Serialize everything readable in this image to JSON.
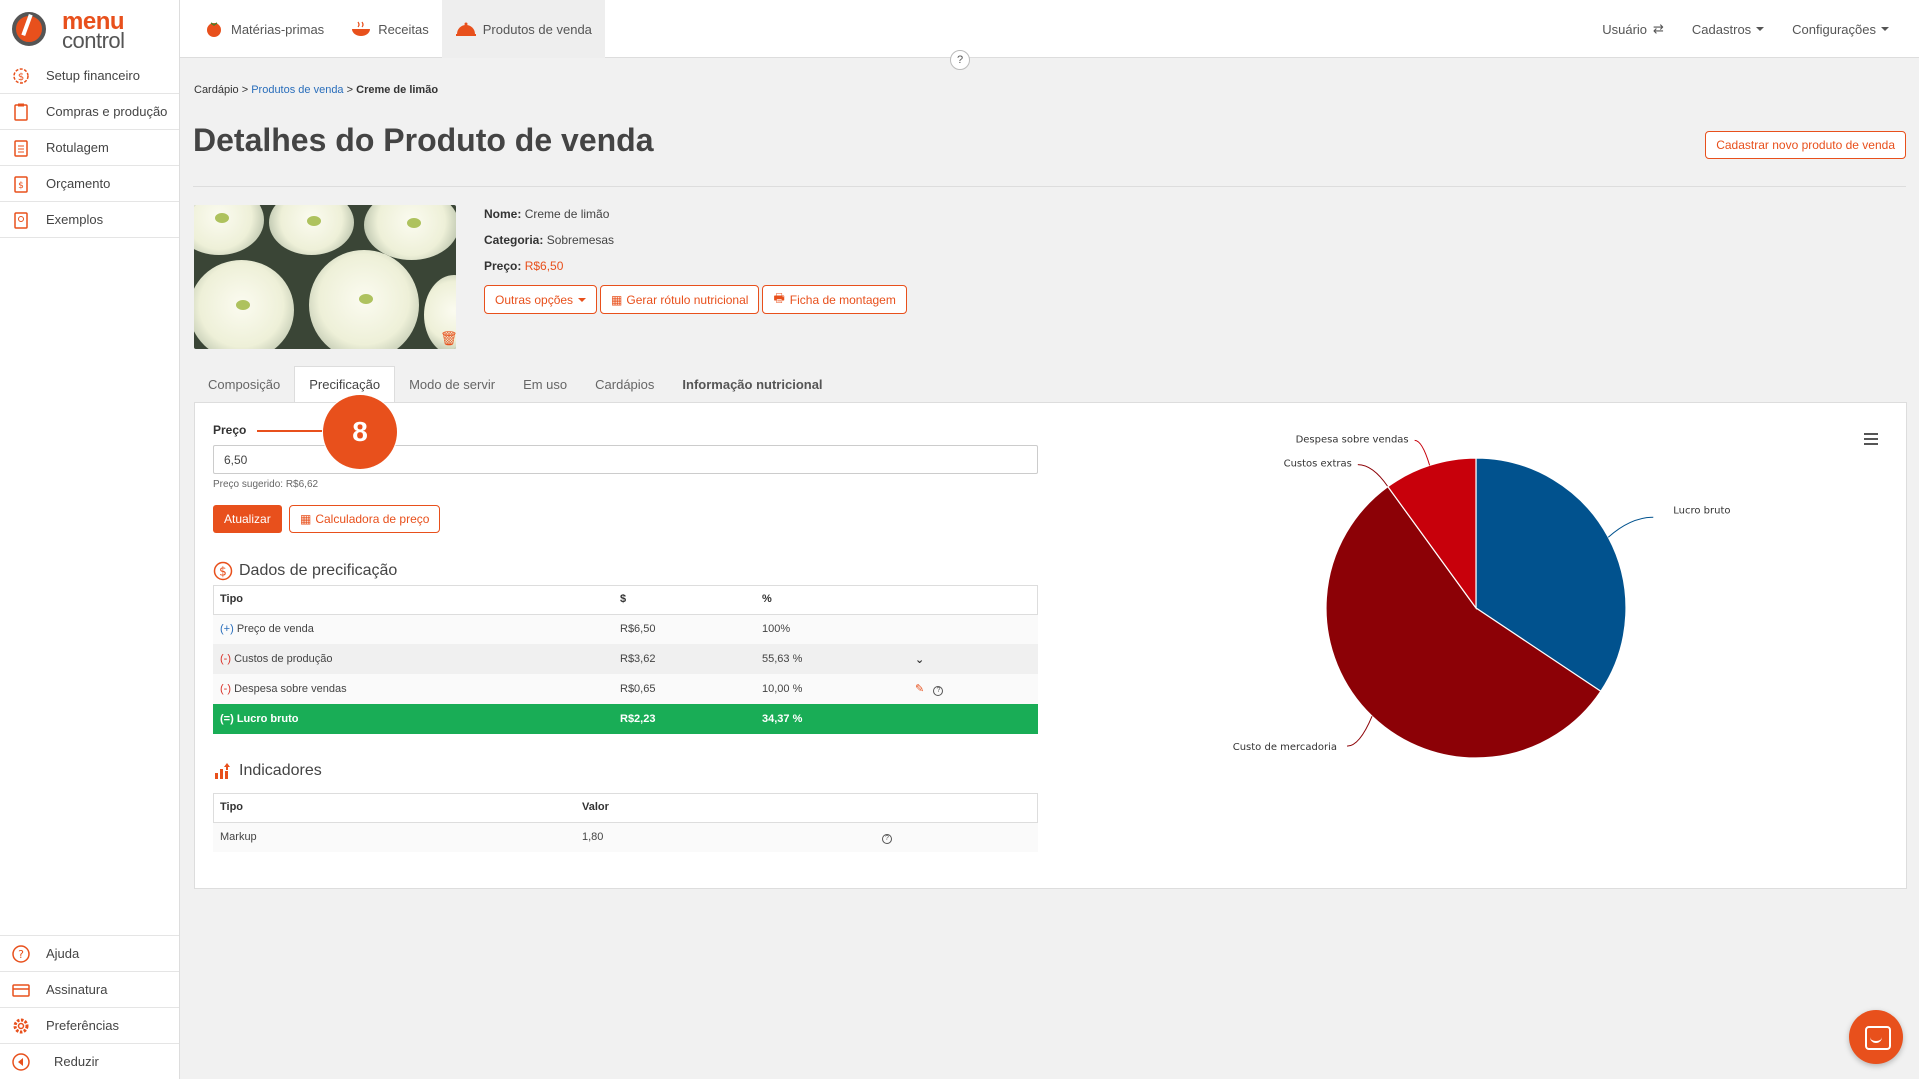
{
  "brand": {
    "line1": "menu",
    "line2": "control",
    "accent": "#e8501c"
  },
  "sidebar": {
    "items": [
      {
        "label": "Setup financeiro",
        "icon": "dollar-gear-icon"
      },
      {
        "label": "Compras e produção",
        "icon": "clipboard-cart-icon"
      },
      {
        "label": "Rotulagem",
        "icon": "label-icon"
      },
      {
        "label": "Orçamento",
        "icon": "budget-icon"
      },
      {
        "label": "Exemplos",
        "icon": "examples-icon"
      }
    ],
    "bottom_items": [
      {
        "label": "Ajuda",
        "icon": "help-icon"
      },
      {
        "label": "Assinatura",
        "icon": "card-icon"
      },
      {
        "label": "Preferências",
        "icon": "gear-icon"
      },
      {
        "label": "Reduzir",
        "icon": "collapse-icon"
      }
    ]
  },
  "topnav": {
    "items": [
      {
        "label": "Matérias-primas",
        "icon": "tomato-icon"
      },
      {
        "label": "Receitas",
        "icon": "bowl-icon"
      },
      {
        "label": "Produtos de venda",
        "icon": "cloche-icon"
      }
    ],
    "active_index": 2,
    "right": {
      "user": "Usuário",
      "cadastros": "Cadastros",
      "config": "Configurações"
    },
    "help": "?"
  },
  "breadcrumb": {
    "root": "Cardápio",
    "sep": ">",
    "parent": "Produtos de venda",
    "current": "Creme de limão"
  },
  "page": {
    "title": "Detalhes do Produto de venda",
    "new_button": "Cadastrar novo produto de venda"
  },
  "product": {
    "name_label": "Nome:",
    "name": "Creme de limão",
    "category_label": "Categoria:",
    "category": "Sobremesas",
    "price_label": "Preço:",
    "price": "R$6,50",
    "actions": {
      "more": "Outras opções",
      "label": "Gerar rótulo nutricional",
      "sheet": "Ficha de montagem"
    }
  },
  "tabs": [
    "Composição",
    "Precificação",
    "Modo de servir",
    "Em uso",
    "Cardápios",
    "Informação nutricional"
  ],
  "pricing": {
    "price_label": "Preço",
    "price_value": "6,50",
    "suggested": "Preço sugerido: R$6,62",
    "update_button": "Atualizar",
    "calc_button": "Calculadora de preço",
    "step_badge": "8"
  },
  "pricing_table": {
    "title": "Dados de precificação",
    "headers": [
      "Tipo",
      "$",
      "%"
    ],
    "rows": [
      {
        "sign": "(+)",
        "label": "Preço de venda",
        "value": "R$6,50",
        "pct": "100%"
      },
      {
        "sign": "(-)",
        "label": "Custos de produção",
        "value": "R$3,62",
        "pct": "55,63 %"
      },
      {
        "sign": "(-)",
        "label": "Despesa sobre vendas",
        "value": "R$0,65",
        "pct": "10,00 %"
      },
      {
        "sign": "(=)",
        "label": "Lucro bruto",
        "value": "R$2,23",
        "pct": "34,37 %"
      }
    ]
  },
  "indicators": {
    "title": "Indicadores",
    "headers": [
      "Tipo",
      "Valor"
    ],
    "rows": [
      {
        "label": "Markup",
        "value": "1,80"
      }
    ]
  },
  "chart_data": {
    "type": "pie",
    "slices": [
      {
        "name": "Lucro bruto",
        "value": 34.37,
        "color": "#01528e"
      },
      {
        "name": "Custo de mercadoria",
        "value": 55.63,
        "color": "#8c0106"
      },
      {
        "name": "Custos extras",
        "value": 0.0,
        "color": "#ffffff"
      },
      {
        "name": "Despesa sobre vendas",
        "value": 10.0,
        "color": "#c8000b"
      }
    ]
  }
}
